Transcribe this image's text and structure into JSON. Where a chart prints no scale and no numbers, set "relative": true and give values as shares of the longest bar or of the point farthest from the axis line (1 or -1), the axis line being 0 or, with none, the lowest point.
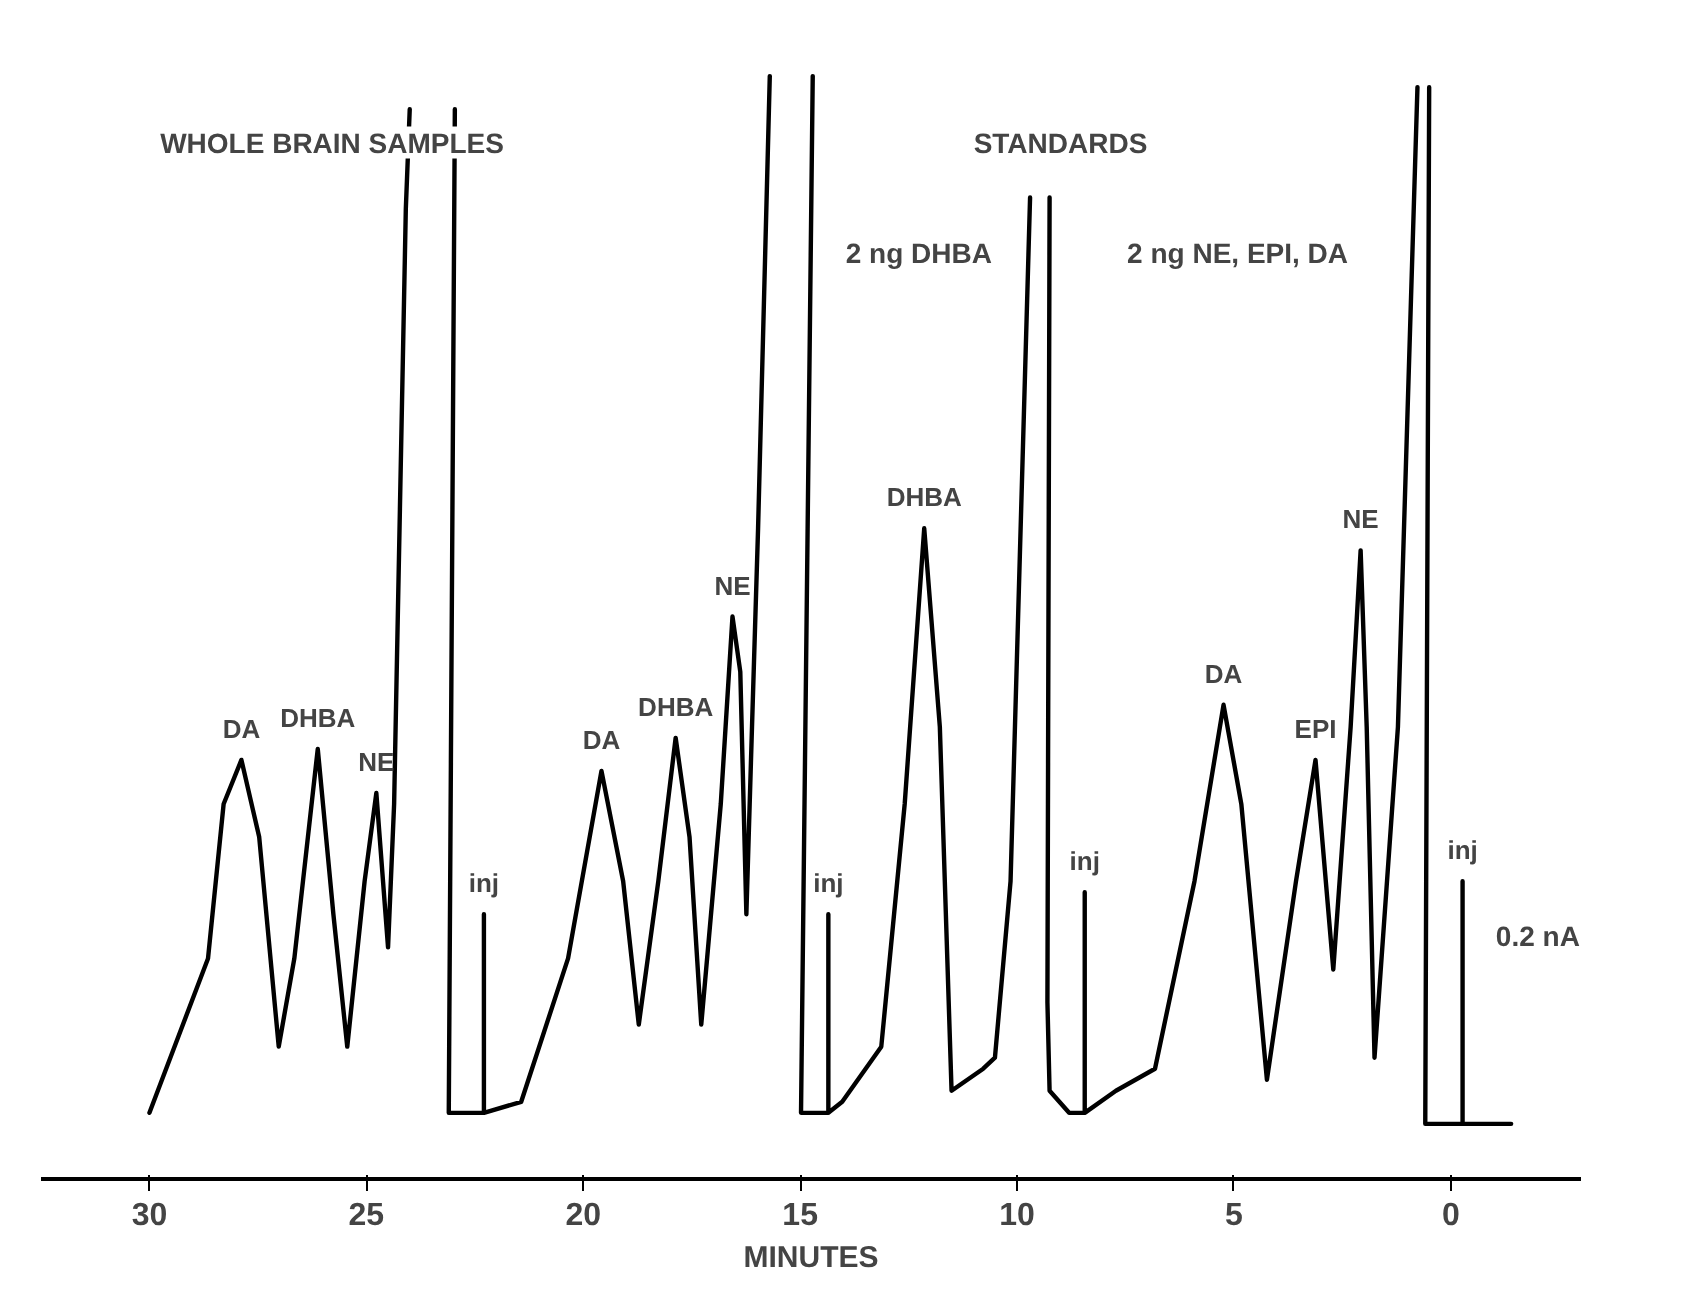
{
  "chart_data": {
    "type": "line",
    "relative": true,
    "xlabel": "MINUTES",
    "xlim": [
      32.5,
      -3
    ],
    "xticks": [
      30,
      25,
      20,
      15,
      10,
      5,
      0
    ],
    "grid": false,
    "marker": "none",
    "line_style": "solid",
    "series": [
      {
        "color": "#000000",
        "x": [
          30.0,
          28.65,
          28.29,
          27.88,
          27.47,
          27.02,
          26.66,
          26.12,
          25.76,
          25.44,
          25.04,
          24.77,
          24.5,
          24.36,
          24.09,
          24.0,
          23.5,
          22.96,
          23.1,
          22.33,
          22.29,
          22.29,
          22.29,
          21.43,
          20.35,
          19.58,
          19.08,
          18.72,
          18.27,
          17.87,
          17.55,
          17.28,
          16.83,
          16.56,
          16.38,
          16.24,
          16.11,
          15.97,
          15.7,
          15.2,
          14.71,
          14.98,
          14.35,
          14.35,
          14.35,
          14.03,
          13.13,
          12.59,
          12.14,
          11.78,
          11.51,
          10.78,
          10.51,
          10.15,
          9.7,
          9.5,
          9.25,
          9.3,
          9.25,
          8.8,
          8.44,
          8.44,
          8.44,
          7.72,
          6.82,
          5.91,
          5.24,
          4.83,
          4.24,
          3.57,
          3.12,
          2.71,
          2.31,
          2.08,
          1.94,
          1.76,
          1.22,
          0.77,
          0.65,
          0.5,
          0.59,
          -0.27,
          -0.27,
          -0.27,
          -1.39
        ],
        "values": [
          0.06,
          0.2,
          0.34,
          0.38,
          0.31,
          0.12,
          0.2,
          0.39,
          0.24,
          0.12,
          0.27,
          0.35,
          0.21,
          0.34,
          0.88,
          0.97,
          null,
          0.97,
          0.06,
          0.06,
          0.06,
          0.24,
          0.06,
          0.07,
          0.2,
          0.37,
          0.27,
          0.14,
          0.27,
          0.4,
          0.31,
          0.14,
          0.34,
          0.51,
          0.46,
          0.24,
          0.41,
          0.59,
          1.0,
          null,
          1.0,
          0.06,
          0.06,
          0.24,
          0.06,
          0.07,
          0.12,
          0.34,
          0.59,
          0.41,
          0.08,
          0.1,
          0.11,
          0.27,
          0.89,
          null,
          0.89,
          0.16,
          0.08,
          0.06,
          0.06,
          0.26,
          0.06,
          0.08,
          0.1,
          0.27,
          0.43,
          0.34,
          0.09,
          0.27,
          0.38,
          0.19,
          0.41,
          0.57,
          0.41,
          0.11,
          0.41,
          0.99,
          null,
          0.99,
          0.05,
          0.05,
          0.27,
          0.05,
          0.05
        ]
      }
    ],
    "annotations": [
      "WHOLE BRAIN SAMPLES",
      "STANDARDS",
      "2 ng DHBA",
      "2 ng NE, EPI, DA",
      {
        "text": "DA",
        "x": 27.88,
        "y": 0.38
      },
      {
        "text": "DHBA",
        "x": 26.12,
        "y": 0.39
      },
      {
        "text": "NE",
        "x": 24.77,
        "y": 0.35
      },
      {
        "text": "inj",
        "x": 22.29,
        "y": 0.24
      },
      {
        "text": "DA",
        "x": 19.58,
        "y": 0.37
      },
      {
        "text": "DHBA",
        "x": 17.87,
        "y": 0.4
      },
      {
        "text": "NE",
        "x": 16.56,
        "y": 0.51
      },
      {
        "text": "inj",
        "x": 14.35,
        "y": 0.24
      },
      {
        "text": "DHBA",
        "x": 12.14,
        "y": 0.59
      },
      {
        "text": "inj",
        "x": 8.44,
        "y": 0.26
      },
      {
        "text": "DA",
        "x": 5.24,
        "y": 0.43
      },
      {
        "text": "EPI",
        "x": 3.12,
        "y": 0.38
      },
      {
        "text": "NE",
        "x": 2.08,
        "y": 0.57
      },
      {
        "text": "inj",
        "x": -0.27,
        "y": 0.27
      },
      "0.2 nA"
    ]
  }
}
